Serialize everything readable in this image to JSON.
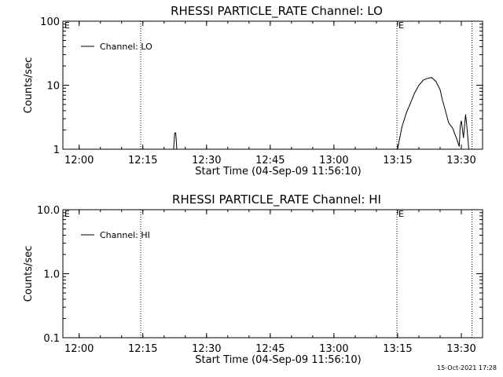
{
  "footer": {
    "timestamp": "15-Oct-2021 17:28"
  },
  "chart_data": [
    {
      "type": "line",
      "title": "RHESSI PARTICLE_RATE Channel: LO",
      "xlabel": "Start Time (04-Sep-09 11:56:10)",
      "ylabel": "Counts/sec",
      "y_scale": "log",
      "ylim": [
        1,
        100
      ],
      "xlim": [
        "11:56:10",
        "13:35:00"
      ],
      "x_ticks": [
        "12:00",
        "12:15",
        "12:30",
        "12:45",
        "13:00",
        "13:15",
        "13:30"
      ],
      "y_ticks": [
        "1",
        "10",
        "100"
      ],
      "legend": {
        "placement": "top-left",
        "entries": [
          "Channel: LO"
        ]
      },
      "markers": [
        {
          "x": "11:56:10",
          "label": "E",
          "line": false
        },
        {
          "x": "12:14:30",
          "label": "",
          "line": true
        },
        {
          "x": "13:14:50",
          "label": "E",
          "line": true
        },
        {
          "x": "13:32:30",
          "label": "",
          "line": true
        }
      ],
      "series": [
        {
          "name": "Channel: LO",
          "x": [
            "12:22:15",
            "12:22:30",
            "12:22:45",
            "12:23:00",
            "12:23:15",
            "13:15:00",
            "13:15:30",
            "13:16:00",
            "13:17:00",
            "13:18:00",
            "13:19:00",
            "13:20:00",
            "13:21:00",
            "13:22:00",
            "13:23:00",
            "13:24:00",
            "13:25:00",
            "13:25:30",
            "13:26:00",
            "13:27:00",
            "13:28:00",
            "13:28:30",
            "13:29:00",
            "13:29:30",
            "13:29:45",
            "13:30:00",
            "13:30:30",
            "13:31:00",
            "13:31:15",
            "13:31:30",
            "13:31:45"
          ],
          "y": [
            1.0,
            1.8,
            1.8,
            1.0,
            1.0,
            1.0,
            1.5,
            2.2,
            3.6,
            5.2,
            7.6,
            10.0,
            12.0,
            12.8,
            13.2,
            11.5,
            8.5,
            6.0,
            4.6,
            2.6,
            2.1,
            1.7,
            1.4,
            1.1,
            2.3,
            2.8,
            1.5,
            3.5,
            2.5,
            1.6,
            1.0
          ]
        }
      ]
    },
    {
      "type": "line",
      "title": "RHESSI PARTICLE_RATE Channel: HI",
      "xlabel": "Start Time (04-Sep-09 11:56:10)",
      "ylabel": "Counts/sec",
      "y_scale": "log",
      "ylim": [
        0.1,
        10
      ],
      "xlim": [
        "11:56:10",
        "13:35:00"
      ],
      "x_ticks": [
        "12:00",
        "12:15",
        "12:30",
        "12:45",
        "13:00",
        "13:15",
        "13:30"
      ],
      "y_ticks": [
        "0.1",
        "1.0",
        "10.0"
      ],
      "legend": {
        "placement": "top-left",
        "entries": [
          "Channel: HI"
        ]
      },
      "markers": [
        {
          "x": "11:56:10",
          "label": "E",
          "line": false
        },
        {
          "x": "12:14:30",
          "label": "",
          "line": true
        },
        {
          "x": "13:14:50",
          "label": "E",
          "line": true
        },
        {
          "x": "13:32:30",
          "label": "",
          "line": true
        }
      ],
      "series": [
        {
          "name": "Channel: HI",
          "x": [],
          "y": []
        }
      ]
    }
  ]
}
